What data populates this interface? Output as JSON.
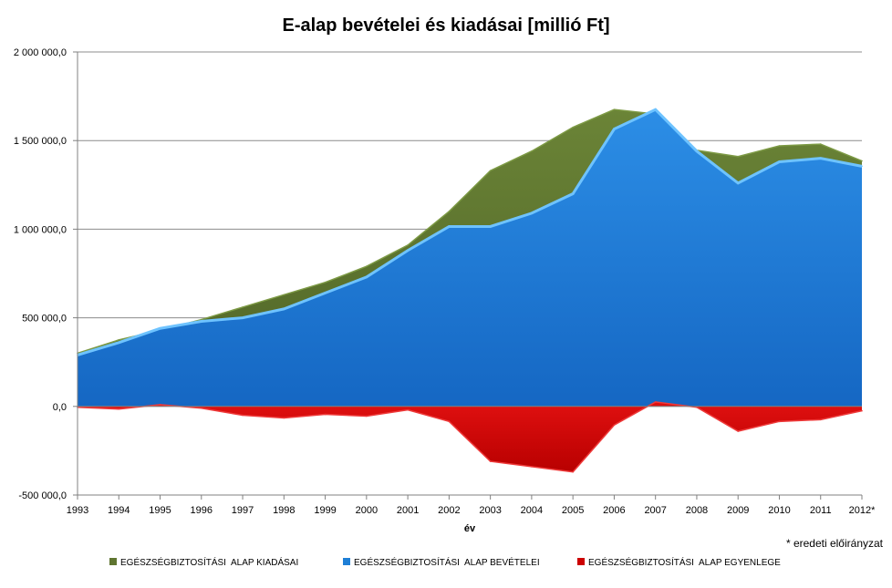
{
  "chart_data": {
    "type": "area",
    "title": "E-alap bevételei és kiadásai [millió Ft]",
    "xlabel": "év",
    "ylabel": "",
    "ylim": [
      -500000,
      2000000
    ],
    "y_ticks": [
      -500000,
      0,
      500000,
      1000000,
      1500000,
      2000000
    ],
    "y_tick_labels": [
      "-500 000,0",
      "0,0",
      "500 000,0",
      "1 000 000,0",
      "1 500 000,0",
      "2 000 000,0"
    ],
    "categories": [
      "1993",
      "1994",
      "1995",
      "1996",
      "1997",
      "1998",
      "1999",
      "2000",
      "2001",
      "2002",
      "2003",
      "2004",
      "2005",
      "2006",
      "2007",
      "2008",
      "2009",
      "2010",
      "2011",
      "2012*"
    ],
    "grid": true,
    "legend_position": "bottom",
    "note": "* eredeti előirányzat",
    "series": [
      {
        "name": "EGÉSZSÉGBIZTOSÍTÁSI  ALAP KIADÁSAI",
        "color": "#5f7530",
        "values": [
          300000,
          375000,
          430000,
          490000,
          560000,
          630000,
          700000,
          790000,
          910000,
          1100000,
          1330000,
          1440000,
          1575000,
          1675000,
          1650000,
          1445000,
          1410000,
          1470000,
          1480000,
          1385000
        ]
      },
      {
        "name": "EGÉSZSÉGBIZTOSÍTÁSI  ALAP BEVÉTELEI",
        "color": "#1f7fd6",
        "values": [
          290000,
          360000,
          440000,
          480000,
          500000,
          550000,
          640000,
          730000,
          880000,
          1015000,
          1015000,
          1090000,
          1200000,
          1565000,
          1675000,
          1440000,
          1260000,
          1380000,
          1400000,
          1355000
        ]
      },
      {
        "name": "EGÉSZSÉGBIZTOSÍTÁSI  ALAP EGYENLEGE",
        "color": "#cc0000",
        "values": [
          -5000,
          -15000,
          10000,
          -10000,
          -50000,
          -65000,
          -45000,
          -55000,
          -20000,
          -85000,
          -310000,
          -340000,
          -370000,
          -105000,
          25000,
          -5000,
          -140000,
          -85000,
          -75000,
          -25000
        ]
      }
    ]
  }
}
